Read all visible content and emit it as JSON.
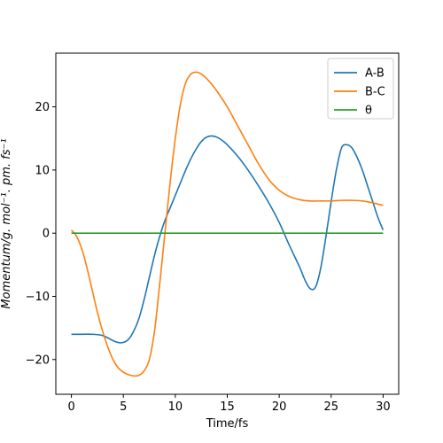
{
  "chart_data": {
    "type": "line",
    "title": "",
    "xlabel": "Time/fs",
    "ylabel": "Momentum/g. mol⁻¹. pm. fs⁻¹",
    "xlim": [
      -1.5,
      31.5
    ],
    "ylim": [
      -25.5,
      28.5
    ],
    "xticks": [
      0,
      5,
      10,
      15,
      20,
      25,
      30
    ],
    "yticks": [
      -20,
      -10,
      0,
      10,
      20
    ],
    "grid": false,
    "legend": "top-right",
    "series": [
      {
        "name": "A-B",
        "color": "#1f77b4",
        "x": [
          0,
          1,
          2,
          3,
          4,
          4.5,
          5,
          5.5,
          6,
          6.5,
          7,
          7.5,
          8,
          8.5,
          9,
          9.5,
          10,
          10.5,
          11,
          11.5,
          12,
          12.5,
          13,
          13.5,
          14,
          14.5,
          15,
          16,
          17,
          18,
          19,
          20,
          21,
          22,
          22.5,
          23,
          23.5,
          24,
          24.5,
          25,
          25.5,
          26,
          26.5,
          27,
          27.5,
          28,
          28.5,
          29,
          29.5,
          30
        ],
        "y": [
          -16,
          -16,
          -16,
          -16.2,
          -17,
          -17.3,
          -17.3,
          -16.8,
          -15.5,
          -13.5,
          -10.5,
          -7,
          -3.5,
          -0.5,
          2,
          4,
          6,
          8,
          10,
          11.8,
          13.3,
          14.5,
          15.2,
          15.4,
          15.2,
          14.7,
          14,
          12.2,
          10,
          7.5,
          4.8,
          1.7,
          -2,
          -5.5,
          -7.5,
          -8.8,
          -8.5,
          -5.5,
          -0.5,
          5,
          10,
          13.5,
          14,
          13.5,
          12,
          10,
          7.5,
          5,
          2.5,
          0.5
        ]
      },
      {
        "name": "B-C",
        "color": "#ff7f0e",
        "x": [
          0,
          0.5,
          1,
          1.5,
          2,
          2.5,
          3,
          3.5,
          4,
          4.5,
          5,
          5.5,
          6,
          6.5,
          7,
          7.5,
          8,
          8.5,
          9,
          9.5,
          10,
          10.5,
          11,
          11.5,
          12,
          12.5,
          13,
          13.5,
          14,
          15,
          16,
          17,
          18,
          19,
          20,
          21,
          22,
          23,
          24,
          25,
          26,
          27,
          28,
          29,
          30
        ],
        "y": [
          0.5,
          -0.5,
          -2.5,
          -5.5,
          -9,
          -12.5,
          -15.5,
          -18,
          -20,
          -21.3,
          -22,
          -22.4,
          -22.6,
          -22.5,
          -21.8,
          -20,
          -15.5,
          -8,
          0,
          8,
          15,
          20.5,
          23.8,
          25.2,
          25.5,
          25.2,
          24.5,
          23.6,
          22.5,
          20,
          17,
          14,
          11,
          8.5,
          6.8,
          5.8,
          5.3,
          5.1,
          5.1,
          5.1,
          5.2,
          5.2,
          5.1,
          4.8,
          4.4
        ]
      },
      {
        "name": "θ",
        "color": "#2ca02c",
        "x": [
          0,
          30
        ],
        "y": [
          0,
          0
        ]
      }
    ]
  }
}
